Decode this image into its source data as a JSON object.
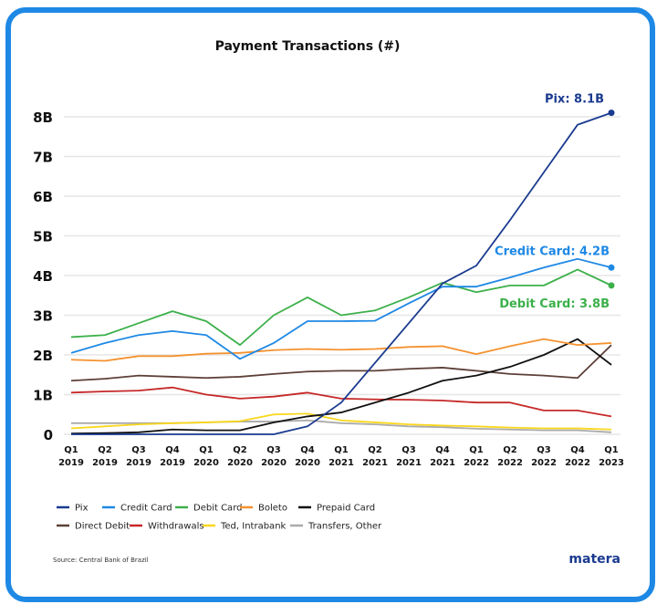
{
  "chart_data": {
    "type": "line",
    "title": "Payment Transactions (#)",
    "categories": [
      "Q1 2019",
      "Q2 2019",
      "Q3 2019",
      "Q4 2019",
      "Q1 2020",
      "Q2 2020",
      "Q3 2020",
      "Q4 2020",
      "Q1 2021",
      "Q2 2021",
      "Q3 2021",
      "Q4 2021",
      "Q1 2022",
      "Q2 2022",
      "Q3 2022",
      "Q4 2022",
      "Q1 2023"
    ],
    "xticks": [
      [
        "Q1",
        "2019"
      ],
      [
        "Q2",
        "2019"
      ],
      [
        "Q3",
        "2019"
      ],
      [
        "Q4",
        "2019"
      ],
      [
        "Q1",
        "2020"
      ],
      [
        "Q2",
        "2020"
      ],
      [
        "Q3",
        "2020"
      ],
      [
        "Q4",
        "2020"
      ],
      [
        "Q1",
        "2021"
      ],
      [
        "Q2",
        "2021"
      ],
      [
        "Q3",
        "2021"
      ],
      [
        "Q4",
        "2021"
      ],
      [
        "Q1",
        "2022"
      ],
      [
        "Q2",
        "2022"
      ],
      [
        "Q3",
        "2022"
      ],
      [
        "Q4",
        "2022"
      ],
      [
        "Q1",
        "2023"
      ]
    ],
    "yticks": [
      {
        "v": 0,
        "label": "0"
      },
      {
        "v": 1,
        "label": "1B"
      },
      {
        "v": 2,
        "label": "2B"
      },
      {
        "v": 3,
        "label": "3B"
      },
      {
        "v": 4,
        "label": "4B"
      },
      {
        "v": 5,
        "label": "5B"
      },
      {
        "v": 6,
        "label": "6B"
      },
      {
        "v": 7,
        "label": "7B"
      },
      {
        "v": 8,
        "label": "8B"
      }
    ],
    "ylim": [
      0,
      8.2
    ],
    "yunit": "billions",
    "grid": true,
    "legend_position": "bottom",
    "series": [
      {
        "name": "Pix",
        "color": "#1a3a8f",
        "values": [
          0,
          0,
          0,
          0,
          0,
          0,
          0,
          0.2,
          0.8,
          1.8,
          2.8,
          3.8,
          4.25,
          5.4,
          6.6,
          7.8,
          8.1
        ]
      },
      {
        "name": "Credit Card",
        "color": "#1e88e5",
        "values": [
          2.05,
          2.3,
          2.5,
          2.6,
          2.5,
          1.9,
          2.3,
          2.85,
          2.85,
          2.86,
          3.3,
          3.72,
          3.72,
          3.95,
          4.2,
          4.42,
          4.2
        ]
      },
      {
        "name": "Debit Card",
        "color": "#3cb04a",
        "values": [
          2.45,
          2.5,
          2.8,
          3.1,
          2.85,
          2.25,
          3.0,
          3.45,
          3.0,
          3.12,
          3.45,
          3.82,
          3.58,
          3.75,
          3.75,
          4.15,
          3.75
        ]
      },
      {
        "name": "Boleto",
        "color": "#f5922f",
        "values": [
          1.88,
          1.85,
          1.97,
          1.97,
          2.03,
          2.05,
          2.12,
          2.15,
          2.13,
          2.15,
          2.2,
          2.22,
          2.02,
          2.22,
          2.4,
          2.25,
          2.3
        ]
      },
      {
        "name": "Prepaid Card",
        "color": "#111111",
        "values": [
          0.02,
          0.03,
          0.05,
          0.12,
          0.1,
          0.1,
          0.3,
          0.45,
          0.55,
          0.8,
          1.05,
          1.35,
          1.48,
          1.7,
          2.0,
          2.4,
          1.75
        ]
      },
      {
        "name": "Direct Debit",
        "color": "#5d4037",
        "values": [
          1.35,
          1.4,
          1.48,
          1.45,
          1.42,
          1.45,
          1.52,
          1.58,
          1.6,
          1.6,
          1.65,
          1.68,
          1.6,
          1.52,
          1.48,
          1.42,
          2.25
        ]
      },
      {
        "name": "Withdrawals",
        "color": "#c62828",
        "values": [
          1.05,
          1.08,
          1.1,
          1.18,
          1.0,
          0.9,
          0.95,
          1.05,
          0.9,
          0.88,
          0.87,
          0.85,
          0.8,
          0.8,
          0.6,
          0.6,
          0.45
        ]
      },
      {
        "name": "Ted, Intrabank",
        "color": "#f9d71c",
        "values": [
          0.15,
          0.2,
          0.25,
          0.28,
          0.3,
          0.33,
          0.5,
          0.52,
          0.35,
          0.3,
          0.25,
          0.22,
          0.2,
          0.17,
          0.15,
          0.15,
          0.12
        ]
      },
      {
        "name": "Transfers, Other",
        "color": "#aaaaaa",
        "values": [
          0.28,
          0.28,
          0.28,
          0.28,
          0.3,
          0.32,
          0.32,
          0.35,
          0.28,
          0.25,
          0.2,
          0.18,
          0.14,
          0.12,
          0.1,
          0.1,
          0.05
        ]
      }
    ],
    "annotations": [
      {
        "series": "Pix",
        "text": "Pix: 8.1B",
        "color": "#1a3a8f"
      },
      {
        "series": "Credit Card",
        "text": "Credit Card: 4.2B",
        "color": "#1e88e5"
      },
      {
        "series": "Debit Card",
        "text": "Debit Card: 3.8B",
        "color": "#3cb04a"
      }
    ]
  },
  "footer": {
    "source": "Source: Central Bank of Brazil",
    "logo": "matera"
  },
  "colors": {
    "frame": "#1e88e5",
    "grid": "#e6e6e6"
  }
}
